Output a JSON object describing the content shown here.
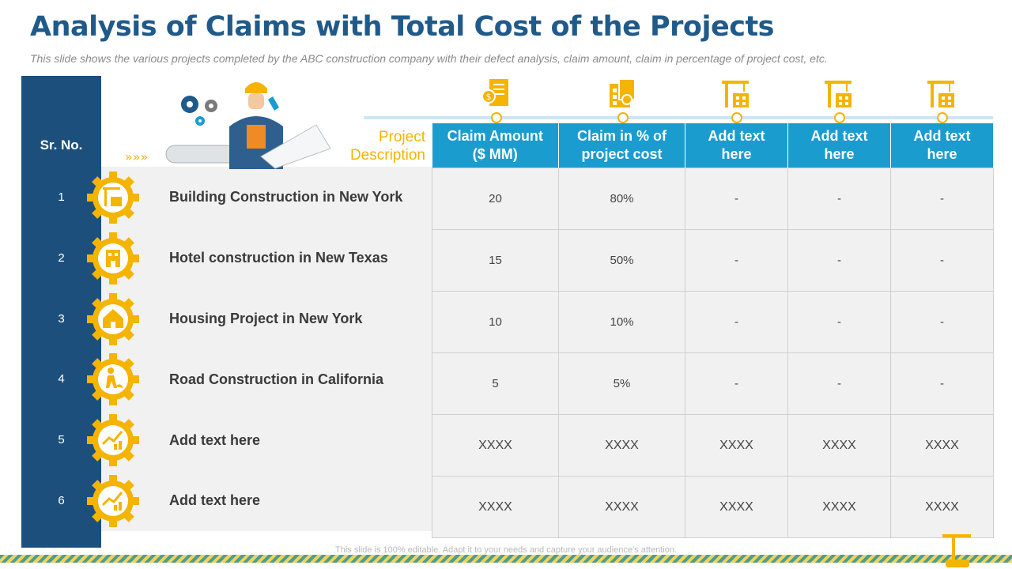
{
  "title": "Analysis of Claims with Total Cost of the Projects",
  "subtitle": "This slide shows the various projects completed by the ABC construction company with  their defect analysis, claim amount, claim in percentage of project cost, etc.",
  "sr_header": "Sr. No.",
  "project_description_line1": "Project",
  "project_description_line2": "Description",
  "columns": [
    {
      "line1": "Claim Amount",
      "line2": "($ MM)",
      "icon": "money-document-icon"
    },
    {
      "line1": "Claim in % of",
      "line2": "project cost",
      "icon": "calculator-document-icon"
    },
    {
      "line1": "Add text",
      "line2": "here",
      "icon": "crane-building-icon"
    },
    {
      "line1": "Add text",
      "line2": "here",
      "icon": "crane-building-icon"
    },
    {
      "line1": "Add text",
      "line2": "here",
      "icon": "crane-building-icon"
    }
  ],
  "rows": [
    {
      "sr": "1",
      "project": "Building Construction in New York",
      "icon": "crane-house-icon",
      "cells": [
        "20",
        "80%",
        "-",
        "-",
        "-"
      ]
    },
    {
      "sr": "2",
      "project": "Hotel construction in New Texas",
      "icon": "hotel-icon",
      "cells": [
        "15",
        "50%",
        "-",
        "-",
        "-"
      ]
    },
    {
      "sr": "3",
      "project": "Housing Project in New York",
      "icon": "housing-icon",
      "cells": [
        "10",
        "10%",
        "-",
        "-",
        "-"
      ]
    },
    {
      "sr": "4",
      "project": "Road Construction in California",
      "icon": "road-worker-icon",
      "cells": [
        "5",
        "5%",
        "-",
        "-",
        "-"
      ]
    },
    {
      "sr": "5",
      "project": "Add text here",
      "icon": "growth-chart-icon",
      "cells": [
        "XXXX",
        "XXXX",
        "XXXX",
        "XXXX",
        "XXXX"
      ]
    },
    {
      "sr": "6",
      "project": "Add text here",
      "icon": "growth-chart-icon",
      "cells": [
        "XXXX",
        "XXXX",
        "XXXX",
        "XXXX",
        "XXXX"
      ]
    }
  ],
  "footer": "This slide is 100% editable. Adapt it to your needs and capture your audience's attention.",
  "colors": {
    "title": "#1f5a8a",
    "band": "#1d4f7d",
    "header": "#1a9ccf",
    "accent": "#f4b400",
    "cell": "#f1f1f1"
  }
}
